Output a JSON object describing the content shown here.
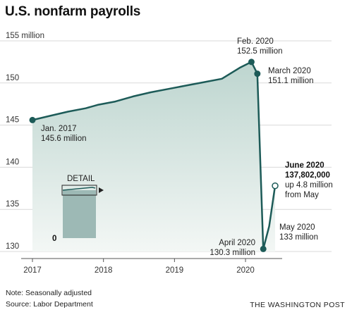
{
  "chart_data": {
    "type": "area",
    "title": "U.S. nonfarm payrolls",
    "units": "million",
    "x_ticks": [
      "2017",
      "2018",
      "2019",
      "2020"
    ],
    "y_ticks": [
      "155 million",
      "150",
      "145",
      "140",
      "135",
      "130"
    ],
    "ylim": [
      130,
      155
    ],
    "xlim": [
      "2017-01",
      "2020-06"
    ],
    "series": [
      {
        "values": [
          {
            "date": "2017-01",
            "value": 145.6
          },
          {
            "date": "2017-04",
            "value": 146.1
          },
          {
            "date": "2017-07",
            "value": 146.6
          },
          {
            "date": "2017-10",
            "value": 147.0
          },
          {
            "date": "2017-12",
            "value": 147.4
          },
          {
            "date": "2018-03",
            "value": 147.8
          },
          {
            "date": "2018-06",
            "value": 148.4
          },
          {
            "date": "2018-09",
            "value": 148.9
          },
          {
            "date": "2018-12",
            "value": 149.3
          },
          {
            "date": "2019-03",
            "value": 149.7
          },
          {
            "date": "2019-06",
            "value": 150.1
          },
          {
            "date": "2019-09",
            "value": 150.5
          },
          {
            "date": "2019-12",
            "value": 151.8
          },
          {
            "date": "2020-02",
            "value": 152.5
          },
          {
            "date": "2020-03",
            "value": 151.1
          },
          {
            "date": "2020-04",
            "value": 130.3
          },
          {
            "date": "2020-05",
            "value": 133.0
          },
          {
            "date": "2020-06",
            "value": 137.8
          }
        ]
      }
    ],
    "annotations": [
      {
        "lines": [
          "Jan. 2017",
          "145.6 million"
        ]
      },
      {
        "lines": [
          "Feb. 2020",
          "152.5 million"
        ]
      },
      {
        "lines": [
          "March 2020",
          "151.1 million"
        ]
      },
      {
        "lines": [
          "April 2020",
          "130.3 million"
        ]
      },
      {
        "lines": [
          "May 2020",
          "133 million"
        ]
      },
      {
        "lines": [
          "June 2020",
          "137,802,000",
          "up 4.8 million",
          "from May"
        ]
      }
    ],
    "inset": {
      "label": "DETAIL",
      "zero_label": "0"
    },
    "colors": {
      "line": "#1d5b58",
      "fill_top": "#bdd5cf",
      "fill_bottom": "#f3f7f5",
      "inset_bar": "#9db9b5",
      "grid": "#d9d9d9"
    },
    "grid": true
  },
  "footer": {
    "note": "Note: Seasonally adjusted",
    "source": "Source: Labor Department",
    "credit": "THE WASHINGTON POST"
  }
}
